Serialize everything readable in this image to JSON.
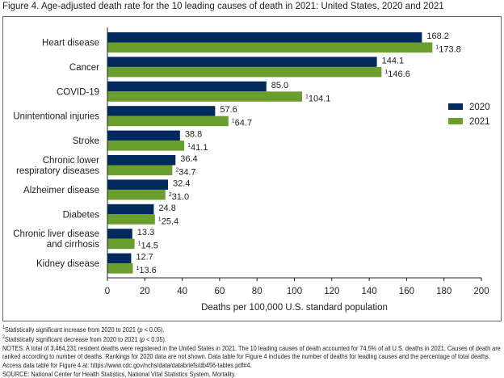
{
  "title": "Figure 4. Age-adjusted death rate for the 10 leading causes of death in 2021: United States, 2020 and 2021",
  "chart_data": {
    "type": "bar",
    "orientation": "horizontal",
    "categories": [
      "Heart disease",
      "Cancer",
      "COVID-19",
      "Unintentional injuries",
      "Stroke",
      "Chronic lower respiratory diseases",
      "Alzheimer disease",
      "Diabetes",
      "Chronic liver disease and cirrhosis",
      "Kidney disease"
    ],
    "category_lines": [
      [
        "Heart disease"
      ],
      [
        "Cancer"
      ],
      [
        "COVID-19"
      ],
      [
        "Unintentional injuries"
      ],
      [
        "Stroke"
      ],
      [
        "Chronic lower",
        "respiratory diseases"
      ],
      [
        "Alzheimer disease"
      ],
      [
        "Diabetes"
      ],
      [
        "Chronic liver disease",
        "and cirrhosis"
      ],
      [
        "Kidney disease"
      ]
    ],
    "series": [
      {
        "name": "2020",
        "color": "#002a5c",
        "values": [
          168.2,
          144.1,
          85.0,
          57.6,
          38.8,
          36.4,
          32.4,
          24.8,
          13.3,
          12.7
        ],
        "labels": [
          "168.2",
          "144.1",
          "85.0",
          "57.6",
          "38.8",
          "36.4",
          "32.4",
          "24.8",
          "13.3",
          "12.7"
        ],
        "footnotes": [
          "",
          "",
          "",
          "",
          "",
          "",
          "",
          "",
          "",
          ""
        ]
      },
      {
        "name": "2021",
        "color": "#6a9f2e",
        "values": [
          173.8,
          146.6,
          104.1,
          64.7,
          41.1,
          34.7,
          31.0,
          25.4,
          14.5,
          13.6
        ],
        "labels": [
          "173.8",
          "146.6",
          "104.1",
          "64.7",
          "41.1",
          "34.7",
          "31.0",
          "25.4",
          "14.5",
          "13.6"
        ],
        "footnotes": [
          "1",
          "1",
          "1",
          "1",
          "1",
          "2",
          "2",
          "1",
          "1",
          "1"
        ]
      }
    ],
    "xlabel": "Deaths per 100,000 U.S. standard population",
    "xlim": [
      0,
      200
    ],
    "xticks": [
      "0",
      "20",
      "40",
      "60",
      "80",
      "100",
      "120",
      "140",
      "160",
      "180",
      "200"
    ],
    "grid": false,
    "legend_placement": "right"
  },
  "notes": {
    "fn1_mark": "1",
    "fn1_text": "Statistically significant increase from 2020 to 2021 (",
    "fn1_p": "p",
    "fn1_end": " < 0.05).",
    "fn2_mark": "2",
    "fn2_text": "Statistically significant decrease from 2020 to 2021 (",
    "fn2_p": "p",
    "fn2_end": " < 0.05).",
    "notes_text": "NOTES: A total of 3,464,231 resident deaths were registered in the United States in 2021. The 10 leading causes of death accounted for 74.5% of all U.S. deaths in 2021. Causes of death are ranked according to number of deaths. Rankings for 2020 data are not shown. Data table for Figure 4 includes the number of deaths for leading causes and the percentage of total deaths. Access data table for Figure 4 at: https://www.cdc.gov/nchs/data/databriefs/db456-tables.pdf#4.",
    "source_text": "SOURCE: National Center for Health Statistics, National Vital Statistics System, Mortality."
  }
}
